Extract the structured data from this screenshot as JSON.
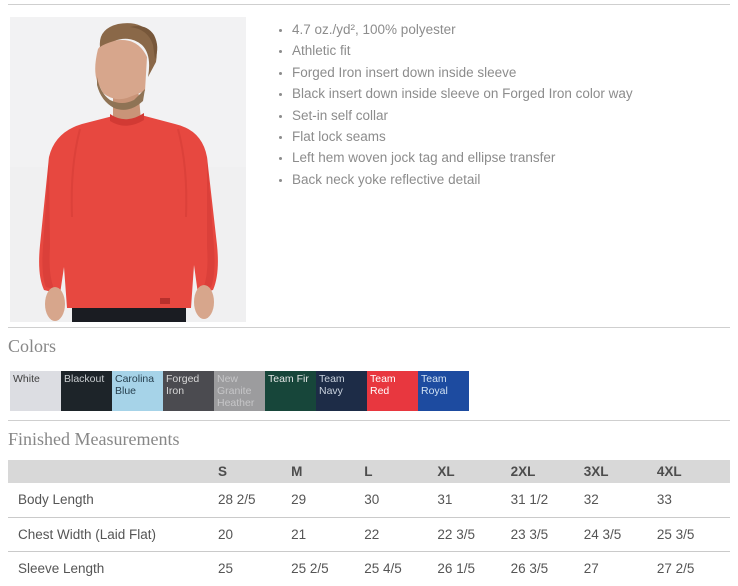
{
  "product": {
    "photo_alt": "model wearing red long sleeve performance shirt",
    "features": [
      "4.7 oz./yd², 100% polyester",
      "Athletic fit",
      "Forged Iron insert down inside sleeve",
      "Black insert down inside sleeve on Forged Iron color way",
      "Set-in self collar",
      "Flat lock seams",
      "Left hem woven jock tag and ellipse transfer",
      "Back neck yoke reflective detail"
    ]
  },
  "colors_section": {
    "title": "Colors",
    "swatches": [
      {
        "name": "White",
        "bg": "#dcdde2",
        "text_color": "#3f3f3f"
      },
      {
        "name": "Blackout",
        "bg": "#1d2429",
        "text_color": "#c9cdd0"
      },
      {
        "name": "Carolina Blue",
        "bg": "#a6d3e8",
        "text_color": "#27404f"
      },
      {
        "name": "Forged Iron",
        "bg": "#4b4b50",
        "text_color": "#d8d8d8"
      },
      {
        "name": "New Granite Heather",
        "bg": "#9c9c9e",
        "text_color": "#c6c6c8"
      },
      {
        "name": "Team Fir",
        "bg": "#17463a",
        "text_color": "#e4e7e6"
      },
      {
        "name": "Team Navy",
        "bg": "#1d2c47",
        "text_color": "#c9d2de"
      },
      {
        "name": "Team Red",
        "bg": "#e8373f",
        "text_color": "#ffffff"
      },
      {
        "name": "Team Royal",
        "bg": "#1d4ba0",
        "text_color": "#cfe0f2"
      }
    ]
  },
  "measurements_section": {
    "title": "Finished Measurements",
    "table": {
      "size_headers": [
        "S",
        "M",
        "L",
        "XL",
        "2XL",
        "3XL",
        "4XL"
      ],
      "rows": [
        {
          "label": "Body Length",
          "values": [
            "28 2/5",
            "29",
            "30",
            "31",
            "31 1/2",
            "32",
            "33"
          ]
        },
        {
          "label": "Chest Width (Laid Flat)",
          "values": [
            "20",
            "21",
            "22",
            "22 3/5",
            "23 3/5",
            "24 3/5",
            "25 3/5"
          ]
        },
        {
          "label": "Sleeve Length",
          "values": [
            "25",
            "25 2/5",
            "25 4/5",
            "26 1/5",
            "26 3/5",
            "27",
            "27 2/5"
          ]
        }
      ]
    }
  },
  "shirt_colors": {
    "shirt_red": "#e74840",
    "shirt_red_shade": "#d23a34",
    "skin": "#d7a68c",
    "skin_shade": "#c99478",
    "hair": "#8a6848",
    "beard": "#8f7355",
    "pants": "#1a1c22",
    "photo_bg": "#f0f0f1"
  }
}
